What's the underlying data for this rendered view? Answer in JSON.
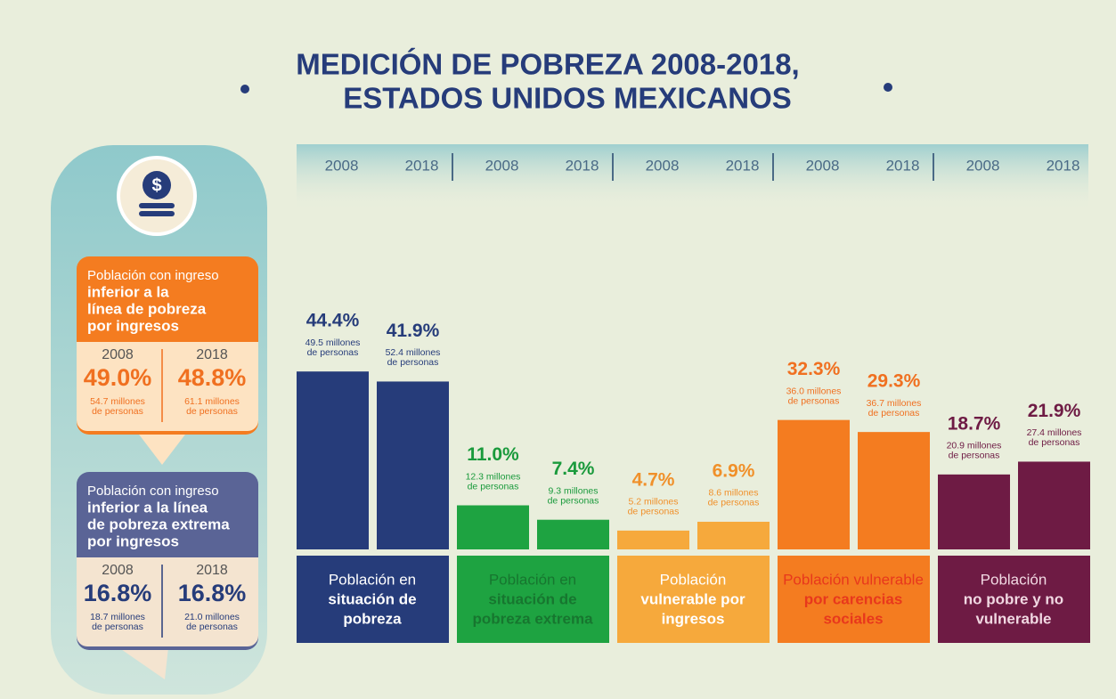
{
  "chart_data": {
    "type": "bar",
    "title": [
      "MEDICIÓN DE POBREZA 2008-2018,",
      "ESTADOS UNIDOS MEXICANOS"
    ],
    "categories": [
      [
        "Población en",
        "situación de",
        "pobreza"
      ],
      [
        "Población en",
        "situación de",
        "pobreza extrema"
      ],
      [
        "Población",
        "vulnerable por",
        "ingresos"
      ],
      [
        "Población vulnerable",
        "por carencias",
        "sociales"
      ],
      [
        "Población",
        "no pobre y no",
        "vulnerable"
      ]
    ],
    "colors": [
      "#263c7a",
      "#1ea341",
      "#f6a93c",
      "#f47c20",
      "#6e1b44"
    ],
    "label_text_colors": [
      "#ffffff",
      "#17762f",
      "#ffffff",
      "#e8381c",
      "#f1d8e2"
    ],
    "value_label_colors": [
      "#263c7a",
      "#1a9a3c",
      "#f0902a",
      "#f07020",
      "#6e1b44"
    ],
    "series": [
      {
        "name": "2008",
        "values": [
          44.4,
          11.0,
          4.7,
          32.3,
          18.7
        ],
        "value_labels": [
          "44.4%",
          "11.0%",
          "4.7%",
          "32.3%",
          "18.7%"
        ],
        "people": [
          [
            "49.5 millones",
            "de personas"
          ],
          [
            "12.3 millones",
            "de personas"
          ],
          [
            "5.2 millones",
            "de personas"
          ],
          [
            "36.0 millones",
            "de personas"
          ],
          [
            "20.9 millones",
            "de personas"
          ]
        ]
      },
      {
        "name": "2018",
        "values": [
          41.9,
          7.4,
          6.9,
          29.3,
          21.9
        ],
        "value_labels": [
          "41.9%",
          "7.4%",
          "6.9%",
          "29.3%",
          "21.9%"
        ],
        "people": [
          [
            "52.4 millones",
            "de personas"
          ],
          [
            "9.3 millones",
            "de personas"
          ],
          [
            "8.6 millones",
            "de personas"
          ],
          [
            "36.7 millones",
            "de personas"
          ],
          [
            "27.4 millones",
            "de personas"
          ]
        ]
      }
    ]
  },
  "sidebar": {
    "boxes": [
      {
        "title": [
          "Población con ingreso",
          "inferior a la",
          "línea de pobreza",
          "por ingresos"
        ],
        "years": [
          "2008",
          "2018"
        ],
        "values": [
          "49.0%",
          "48.8%"
        ],
        "people": [
          [
            "54.7 millones",
            "de personas"
          ],
          [
            "61.1 millones",
            "de personas"
          ]
        ]
      },
      {
        "title": [
          "Población con ingreso",
          "inferior a la línea",
          "de pobreza extrema",
          "por ingresos"
        ],
        "years": [
          "2008",
          "2018"
        ],
        "values": [
          "16.8%",
          "16.8%"
        ],
        "people": [
          [
            "18.7 millones",
            "de personas"
          ],
          [
            "21.0 millones",
            "de personas"
          ]
        ]
      }
    ]
  }
}
